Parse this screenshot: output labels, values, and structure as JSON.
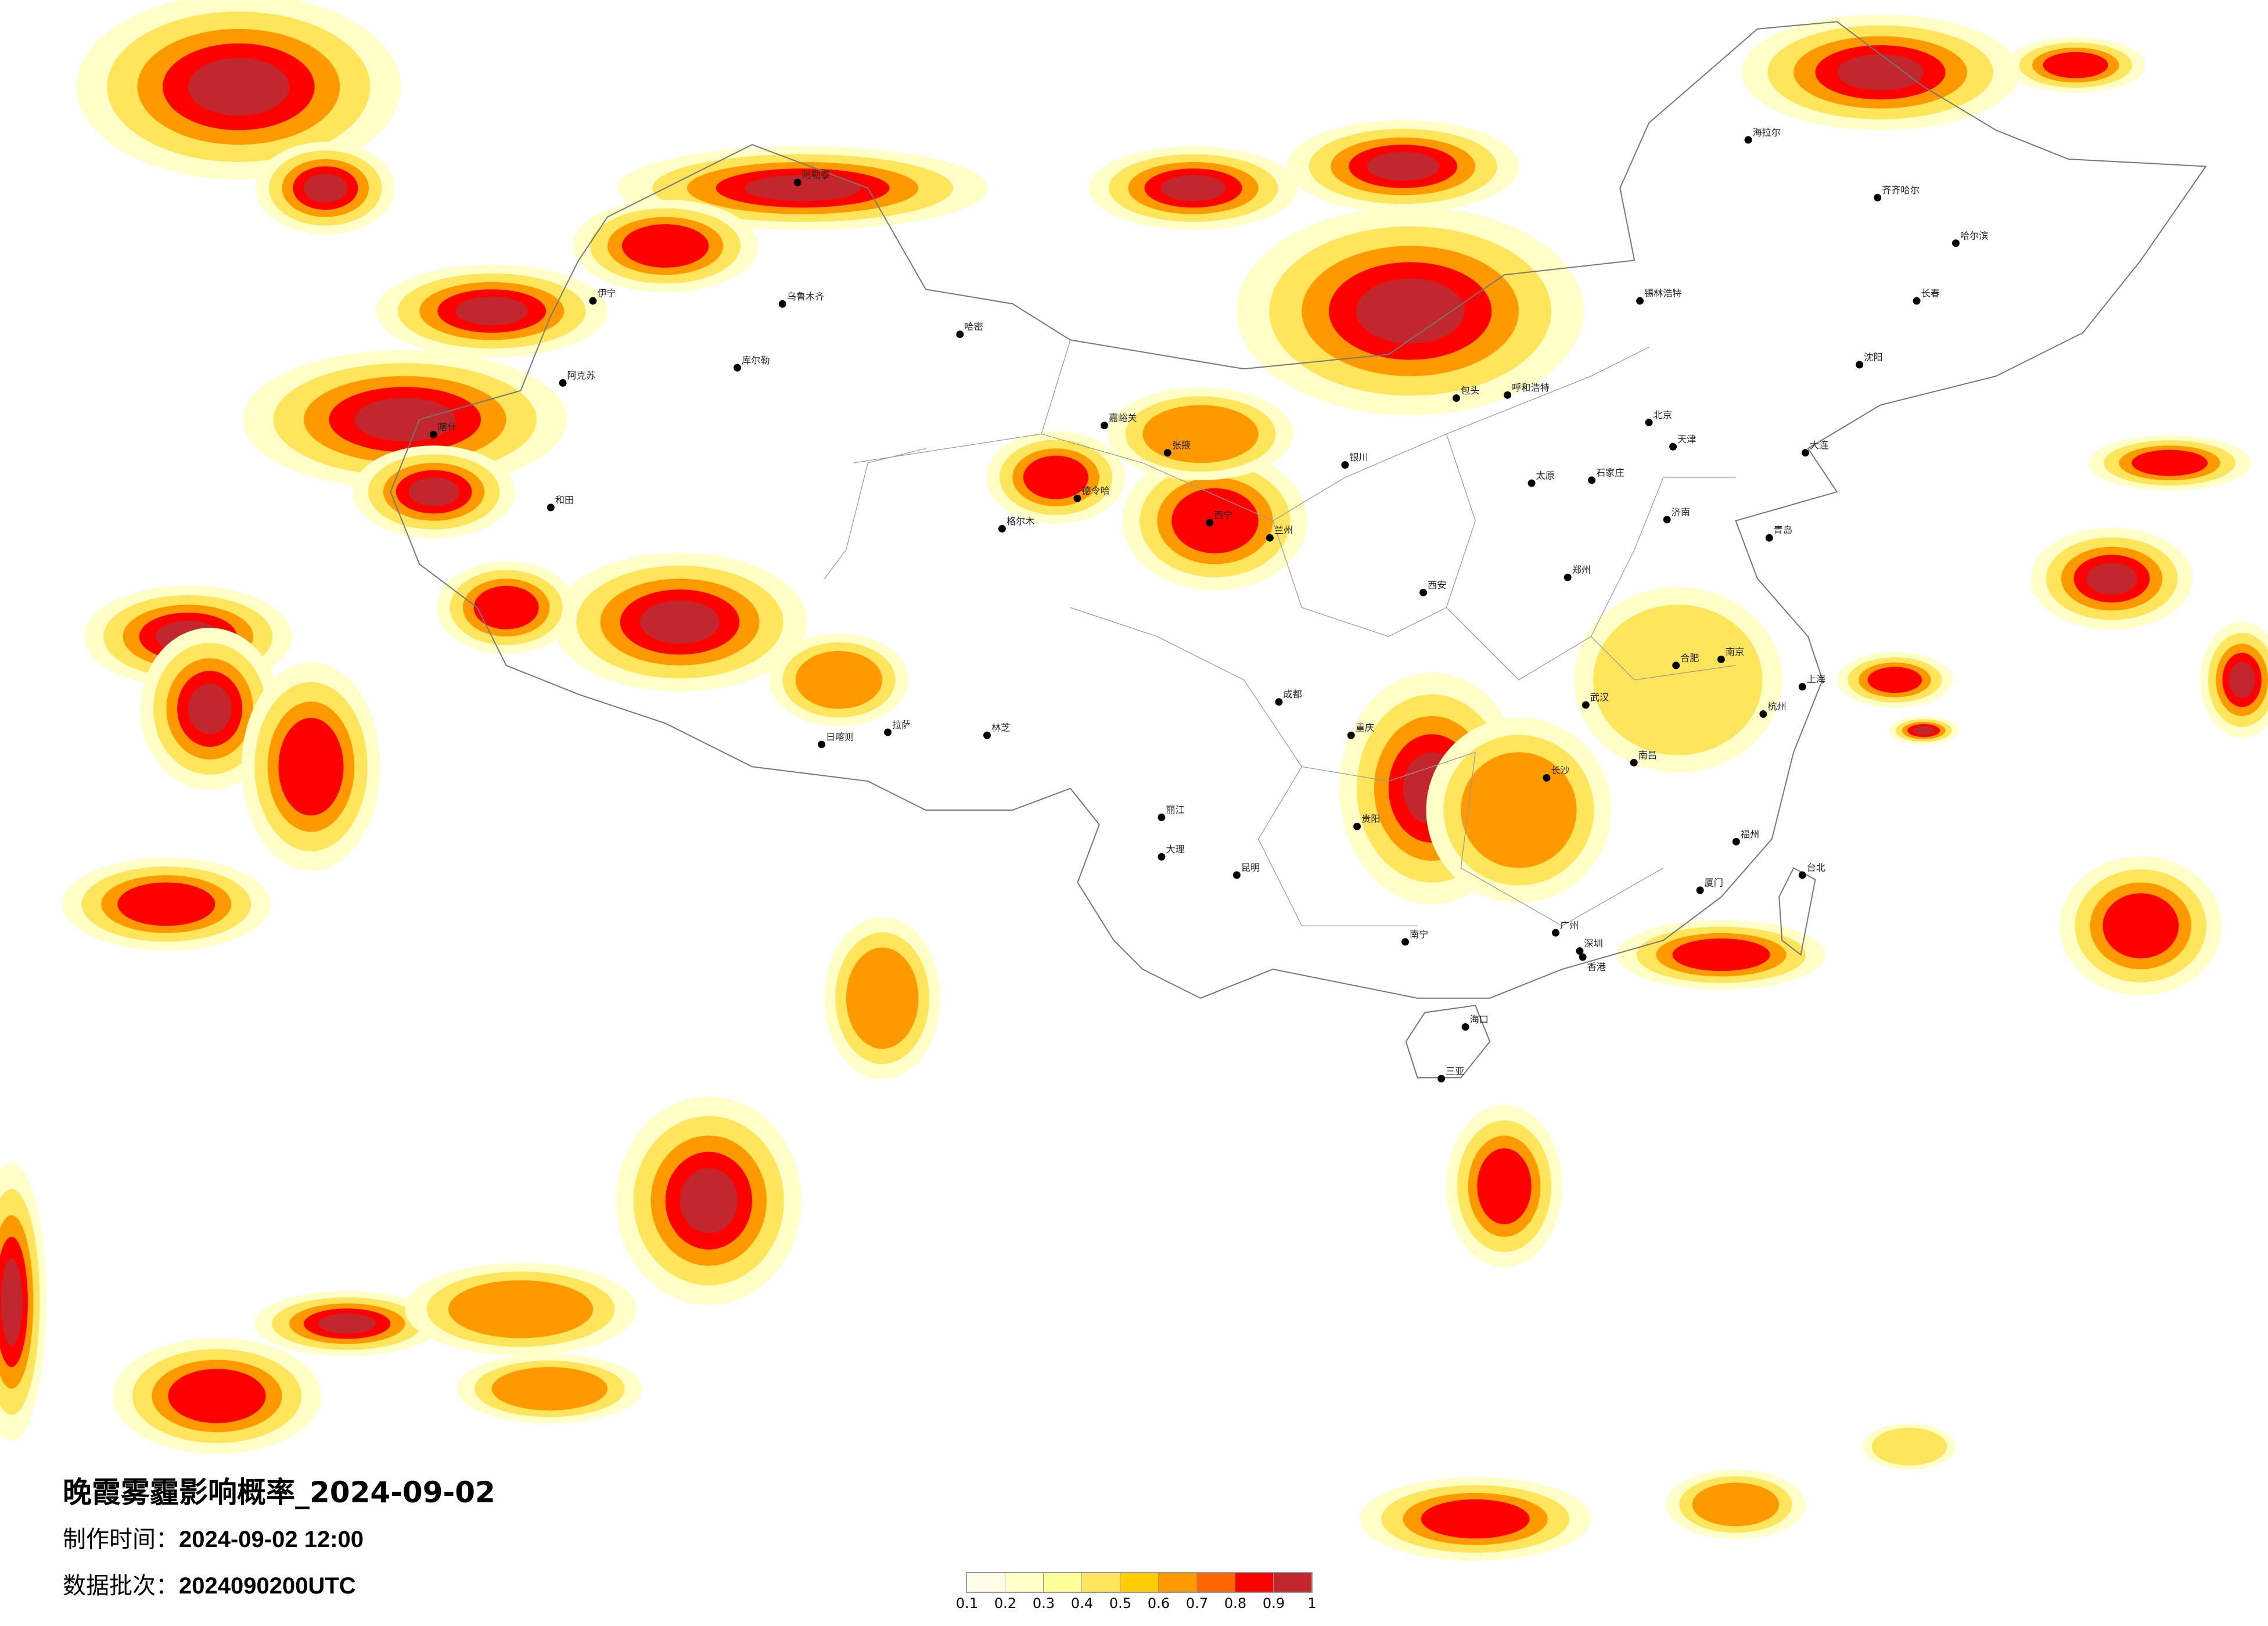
{
  "title": "晚霞雾霾影响概率_2024-09-02",
  "production_time": {
    "label": "制作时间：",
    "value": "2024-09-02 12:00"
  },
  "data_batch": {
    "label": "数据批次：",
    "value": "2024090200UTC"
  },
  "legend": {
    "colors": [
      "#fffde8",
      "#ffffc8",
      "#ffff99",
      "#ffe55c",
      "#ffcc00",
      "#ff9900",
      "#ff6600",
      "#ff0000",
      "#c1272d"
    ],
    "labels": [
      "0.1",
      "0.2",
      "0.3",
      "0.4",
      "0.5",
      "0.6",
      "0.7",
      "0.8",
      "0.9",
      "1"
    ]
  },
  "cities": [
    {
      "name": "北京",
      "lon": 116.4,
      "lat": 39.9
    },
    {
      "name": "天津",
      "lon": 117.2,
      "lat": 39.1
    },
    {
      "name": "石家庄",
      "lon": 114.5,
      "lat": 38.0
    },
    {
      "name": "太原",
      "lon": 112.5,
      "lat": 37.9
    },
    {
      "name": "呼和浩特",
      "lon": 111.7,
      "lat": 40.8
    },
    {
      "name": "包头",
      "lon": 110.0,
      "lat": 40.7
    },
    {
      "name": "沈阳",
      "lon": 123.4,
      "lat": 41.8
    },
    {
      "name": "大连",
      "lon": 121.6,
      "lat": 38.9
    },
    {
      "name": "长春",
      "lon": 125.3,
      "lat": 43.9
    },
    {
      "name": "哈尔滨",
      "lon": 126.6,
      "lat": 45.8
    },
    {
      "name": "齐齐哈尔",
      "lon": 124.0,
      "lat": 47.3
    },
    {
      "name": "海拉尔",
      "lon": 119.7,
      "lat": 49.2
    },
    {
      "name": "锡林浩特",
      "lon": 116.1,
      "lat": 43.9
    },
    {
      "name": "上海",
      "lon": 121.5,
      "lat": 31.2
    },
    {
      "name": "南京",
      "lon": 118.8,
      "lat": 32.1
    },
    {
      "name": "杭州",
      "lon": 120.2,
      "lat": 30.3
    },
    {
      "name": "合肥",
      "lon": 117.3,
      "lat": 31.9
    },
    {
      "name": "福州",
      "lon": 119.3,
      "lat": 26.1
    },
    {
      "name": "厦门",
      "lon": 118.1,
      "lat": 24.5
    },
    {
      "name": "南昌",
      "lon": 115.9,
      "lat": 28.7
    },
    {
      "name": "济南",
      "lon": 117.0,
      "lat": 36.7
    },
    {
      "name": "青岛",
      "lon": 120.4,
      "lat": 36.1
    },
    {
      "name": "郑州",
      "lon": 113.7,
      "lat": 34.8
    },
    {
      "name": "武汉",
      "lon": 114.3,
      "lat": 30.6
    },
    {
      "name": "长沙",
      "lon": 113.0,
      "lat": 28.2
    },
    {
      "name": "广州",
      "lon": 113.3,
      "lat": 23.1
    },
    {
      "name": "深圳",
      "lon": 114.1,
      "lat": 22.5
    },
    {
      "name": "南宁",
      "lon": 108.3,
      "lat": 22.8
    },
    {
      "name": "海口",
      "lon": 110.3,
      "lat": 20.0
    },
    {
      "name": "三亚",
      "lon": 109.5,
      "lat": 18.3
    },
    {
      "name": "成都",
      "lon": 104.1,
      "lat": 30.7
    },
    {
      "name": "重庆",
      "lon": 106.5,
      "lat": 29.6
    },
    {
      "name": "贵阳",
      "lon": 106.7,
      "lat": 26.6
    },
    {
      "name": "昆明",
      "lon": 102.7,
      "lat": 25.0
    },
    {
      "name": "大理",
      "lon": 100.2,
      "lat": 25.6
    },
    {
      "name": "丽江",
      "lon": 100.2,
      "lat": 26.9
    },
    {
      "name": "拉萨",
      "lon": 91.1,
      "lat": 29.7
    },
    {
      "name": "日喀则",
      "lon": 88.9,
      "lat": 29.3
    },
    {
      "name": "林芝",
      "lon": 94.4,
      "lat": 29.6
    },
    {
      "name": "西安",
      "lon": 108.9,
      "lat": 34.3
    },
    {
      "name": "兰州",
      "lon": 103.8,
      "lat": 36.1
    },
    {
      "name": "西宁",
      "lon": 101.8,
      "lat": 36.6
    },
    {
      "name": "格尔木",
      "lon": 94.9,
      "lat": 36.4
    },
    {
      "name": "德令哈",
      "lon": 97.4,
      "lat": 37.4
    },
    {
      "name": "银川",
      "lon": 106.3,
      "lat": 38.5
    },
    {
      "name": "嘉峪关",
      "lon": 98.3,
      "lat": 39.8
    },
    {
      "name": "张掖",
      "lon": 100.4,
      "lat": 38.9
    },
    {
      "name": "乌鲁木齐",
      "lon": 87.6,
      "lat": 43.8
    },
    {
      "name": "哈密",
      "lon": 93.5,
      "lat": 42.8
    },
    {
      "name": "库尔勒",
      "lon": 86.1,
      "lat": 41.7
    },
    {
      "name": "伊宁",
      "lon": 81.3,
      "lat": 43.9
    },
    {
      "name": "阿克苏",
      "lon": 80.3,
      "lat": 41.2
    },
    {
      "name": "喀什",
      "lon": 76.0,
      "lat": 39.5
    },
    {
      "name": "和田",
      "lon": 79.9,
      "lat": 37.1
    },
    {
      "name": "阿勒泰",
      "lon": 88.1,
      "lat": 47.8
    },
    {
      "name": "台北",
      "lon": 121.5,
      "lat": 25.0
    },
    {
      "name": "香港",
      "lon": 114.2,
      "lat": 22.3
    }
  ]
}
